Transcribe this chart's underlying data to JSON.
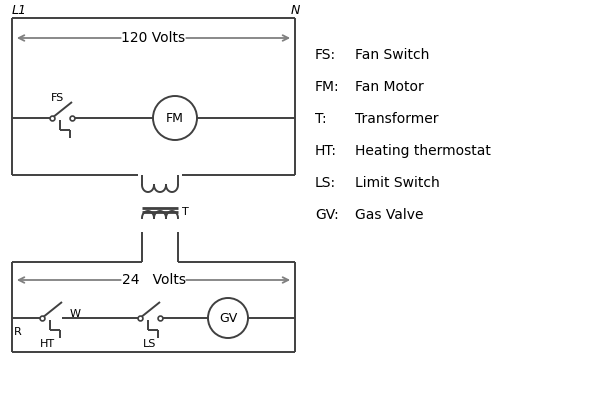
{
  "background_color": "#ffffff",
  "line_color": "#404040",
  "arrow_color": "#808080",
  "text_color": "#000000",
  "legend_items": [
    [
      "FS:",
      "Fan Switch"
    ],
    [
      "FM:",
      "Fan Motor"
    ],
    [
      "T:",
      "Transformer"
    ],
    [
      "HT:",
      "Heating thermostat"
    ],
    [
      "LS:",
      "Limit Switch"
    ],
    [
      "GV:",
      "Gas Valve"
    ]
  ],
  "L1_label": "L1",
  "N_label": "N",
  "v120_label": "120 Volts",
  "v24_label": "24   Volts",
  "R_label": "R",
  "W_label": "W",
  "HT_label": "HT",
  "LS_label": "LS",
  "T_label": "T",
  "FS_label": "FS",
  "FM_label": "FM",
  "GV_label": "GV"
}
